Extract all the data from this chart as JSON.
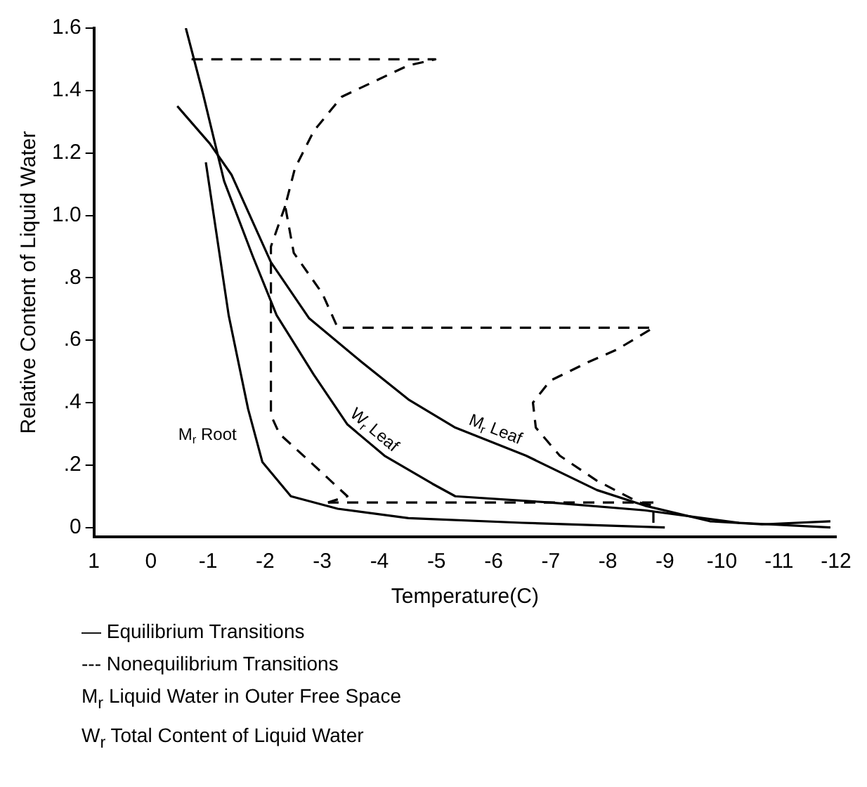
{
  "chart_data": {
    "type": "line",
    "xlabel": "Temperature(C)",
    "ylabel": "Relative Content of Liquid Water",
    "xlim": [
      1,
      -12
    ],
    "ylim": [
      -0.03,
      1.6
    ],
    "xticks": [
      1,
      0,
      -1,
      -2,
      -3,
      -4,
      -5,
      -6,
      -7,
      -8,
      -9,
      -10,
      -11,
      -12
    ],
    "yticks": [
      0,
      {
        "value": 0.2,
        "label": ".2"
      },
      {
        "value": 0.4,
        "label": ".4"
      },
      {
        "value": 0.6,
        "label": ".6"
      },
      {
        "value": 0.8,
        "label": ".8"
      },
      {
        "value": 1.0,
        "label": "1.0"
      },
      {
        "value": 1.2,
        "label": "1.2"
      },
      {
        "value": 1.4,
        "label": "1.4"
      },
      {
        "value": 1.6,
        "label": "1.6"
      }
    ],
    "grid": false,
    "legend": false,
    "marker": "none",
    "series": [
      {
        "name": "M$_{r}$ Leaf",
        "color": "#000000",
        "line_style": "solid",
        "x": [
          -0.46,
          -1.03,
          -1.41,
          -2.1,
          -2.77,
          -3.69,
          -4.51,
          -5.33,
          -6.57,
          -7.81,
          -8.65,
          -9.79,
          -10.7,
          -11.9
        ],
        "values": [
          1.35,
          1.23,
          1.13,
          0.85,
          0.67,
          0.53,
          0.41,
          0.32,
          0.23,
          0.12,
          0.07,
          0.02,
          0.01,
          0.02
        ]
      },
      {
        "name": "W$_{r}$ Leaf",
        "color": "#000000",
        "line_style": "solid",
        "x": [
          -0.61,
          -0.91,
          -1.28,
          -1.78,
          -2.2,
          -2.85,
          -3.44,
          -4.09,
          -4.93,
          -5.33,
          -6.99,
          -8.65,
          -10.3,
          -11.9
        ],
        "values": [
          1.6,
          1.39,
          1.11,
          0.87,
          0.68,
          0.49,
          0.33,
          0.23,
          0.14,
          0.1,
          0.08,
          0.055,
          0.015,
          0.0
        ]
      },
      {
        "name": "M$_{r}$ Root",
        "color": "#000000",
        "line_style": "solid",
        "x": [
          -0.96,
          -1.36,
          -1.7,
          -1.95,
          -2.45,
          -3.27,
          -4.51,
          -6.5,
          -9.0
        ],
        "values": [
          1.17,
          0.68,
          0.38,
          0.21,
          0.1,
          0.06,
          0.03,
          0.015,
          0.0
        ]
      },
      {
        "color": "#000000",
        "line_style": "dashed",
        "x": [
          -0.71,
          -4.98,
          -4.5,
          -3.34,
          -2.85,
          -2.52,
          -2.35,
          -2.5,
          -3.0,
          -3.27,
          -8.8,
          -8.16,
          -7.66,
          -6.99,
          -6.69,
          -6.74,
          -7.16,
          -7.81,
          -8.55,
          -8.8,
          -8.8
        ],
        "values": [
          1.5,
          1.5,
          1.48,
          1.38,
          1.27,
          1.15,
          1.03,
          0.88,
          0.75,
          0.64,
          0.64,
          0.57,
          0.53,
          0.47,
          0.4,
          0.32,
          0.23,
          0.15,
          0.08,
          0.07,
          0.0
        ]
      },
      {
        "color": "#000000",
        "line_style": "dashed",
        "x": [
          -2.35,
          -2.1,
          -2.1,
          -2.25,
          -2.85,
          -3.44,
          -3.1
        ],
        "values": [
          1.03,
          0.9,
          0.36,
          0.3,
          0.2,
          0.1,
          0.08
        ]
      },
      {
        "color": "#000000",
        "line_style": "dashed",
        "x": [
          -8.8,
          -3.1
        ],
        "values": [
          0.08,
          0.08
        ]
      }
    ],
    "annotations": [
      "— Equilibrium Transitions",
      "--- Nonequilibrium Transitions",
      "M$_{r}$ Liquid Water in Outer Free Space",
      "W$_{r}$ Total Content of Liquid Water"
    ]
  }
}
